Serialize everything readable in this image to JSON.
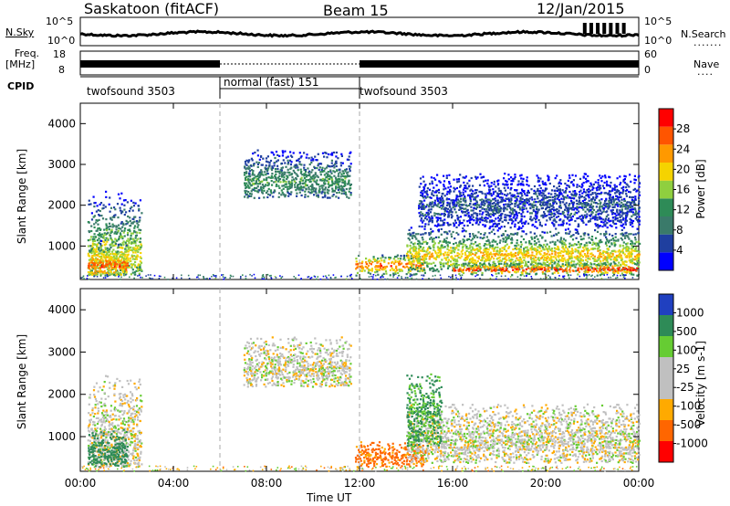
{
  "header": {
    "site": "Saskatoon (fitACF)",
    "beam": "Beam 15",
    "date": "12/Jan/2015"
  },
  "panels": {
    "nsky_label": "N.Sky",
    "nsky_ticks": [
      "10^5",
      "10^0"
    ],
    "nsearch_label": "N.Search",
    "nsearch_ticks": [
      "10^5",
      "10^0"
    ],
    "freq_label": "Freq.",
    "freq_unit": "[MHz]",
    "freq_ticks": [
      "18",
      "8"
    ],
    "nave_label": "Nave",
    "nave_ticks": [
      "60",
      "0"
    ],
    "cpid_label": "CPID"
  },
  "cpid": [
    {
      "text": "twofsound 3503",
      "start_h": 0,
      "end_h": 6
    },
    {
      "text": "normal (fast) 151",
      "start_h": 6,
      "end_h": 12
    },
    {
      "text": "twofsound 3503",
      "start_h": 12,
      "end_h": 24
    }
  ],
  "colors": {
    "power_scale": [
      "#0000ff",
      "#1f3f9f",
      "#3a7a6a",
      "#2e8b57",
      "#8fcf3f",
      "#f5d300",
      "#ff9900",
      "#ff5500",
      "#ff0000"
    ],
    "velocity_scale": [
      "#2040c0",
      "#2e8b57",
      "#66cc33",
      "#c0c0c0",
      "#c0c0c0",
      "#ffaa00",
      "#ff6600",
      "#ff0000"
    ],
    "frame": "#000000",
    "guide": "#aaaaaa"
  },
  "chart_data": [
    {
      "type": "heatmap",
      "parameter": "Power",
      "ylabel": "Slant Range [km]",
      "xlabel": "Time UT",
      "xlim_hours": [
        0,
        24
      ],
      "ylim": [
        180,
        4500
      ],
      "yticks": [
        "1000",
        "2000",
        "3000",
        "4000"
      ],
      "xticks": [
        "00:00",
        "04:00",
        "08:00",
        "12:00",
        "16:00",
        "20:00",
        "00:00"
      ],
      "colorbar": {
        "label": "Power [dB]",
        "ticks": [
          "4",
          "8",
          "12",
          "16",
          "20",
          "24",
          "28"
        ],
        "range": [
          0,
          30
        ]
      },
      "regions": [
        {
          "t": [
            0.3,
            2.6
          ],
          "r": [
            300,
            2500
          ],
          "core": 800,
          "val": 18
        },
        {
          "t": [
            0.3,
            2.0
          ],
          "r": [
            300,
            1200
          ],
          "core": 550,
          "val": 26
        },
        {
          "t": [
            7.0,
            11.6
          ],
          "r": [
            2200,
            3400
          ],
          "core": 2600,
          "val": 12
        },
        {
          "t": [
            11.8,
            14.8
          ],
          "r": [
            300,
            800
          ],
          "core": 550,
          "val": 26
        },
        {
          "t": [
            14.0,
            24.0
          ],
          "r": [
            400,
            1500
          ],
          "core": 800,
          "val": 20
        },
        {
          "t": [
            16.0,
            24.0
          ],
          "r": [
            300,
            600
          ],
          "core": 450,
          "val": 28
        },
        {
          "t": [
            14.5,
            24.0
          ],
          "r": [
            1500,
            2800
          ],
          "core": 2000,
          "val": 6
        }
      ]
    },
    {
      "type": "heatmap",
      "parameter": "Velocity",
      "ylabel": "Slant Range [km]",
      "xlabel": "Time UT",
      "xlim_hours": [
        0,
        24
      ],
      "ylim": [
        180,
        4500
      ],
      "yticks": [
        "1000",
        "2000",
        "3000",
        "4000"
      ],
      "xticks": [
        "00:00",
        "04:00",
        "08:00",
        "12:00",
        "16:00",
        "20:00",
        "00:00"
      ],
      "colorbar": {
        "label": "Velocity [m s-1]",
        "ticks": [
          "1000",
          "500",
          "100",
          "25",
          "-25",
          "-100",
          "-500",
          "-1000"
        ],
        "range": [
          -1000,
          1000
        ]
      },
      "regions": [
        {
          "t": [
            0.3,
            2.6
          ],
          "r": [
            300,
            2500
          ],
          "core": 900,
          "val": 0
        },
        {
          "t": [
            0.3,
            2.0
          ],
          "r": [
            300,
            1200
          ],
          "core": 600,
          "val": 150
        },
        {
          "t": [
            7.0,
            11.6
          ],
          "r": [
            2200,
            3400
          ],
          "core": 2600,
          "val": 0
        },
        {
          "t": [
            11.8,
            14.8
          ],
          "r": [
            300,
            900
          ],
          "core": 550,
          "val": -120
        },
        {
          "t": [
            14.0,
            24.0
          ],
          "r": [
            400,
            1800
          ],
          "core": 900,
          "val": 0
        },
        {
          "t": [
            14.0,
            15.5
          ],
          "r": [
            800,
            2500
          ],
          "core": 1500,
          "val": 110
        }
      ]
    }
  ]
}
